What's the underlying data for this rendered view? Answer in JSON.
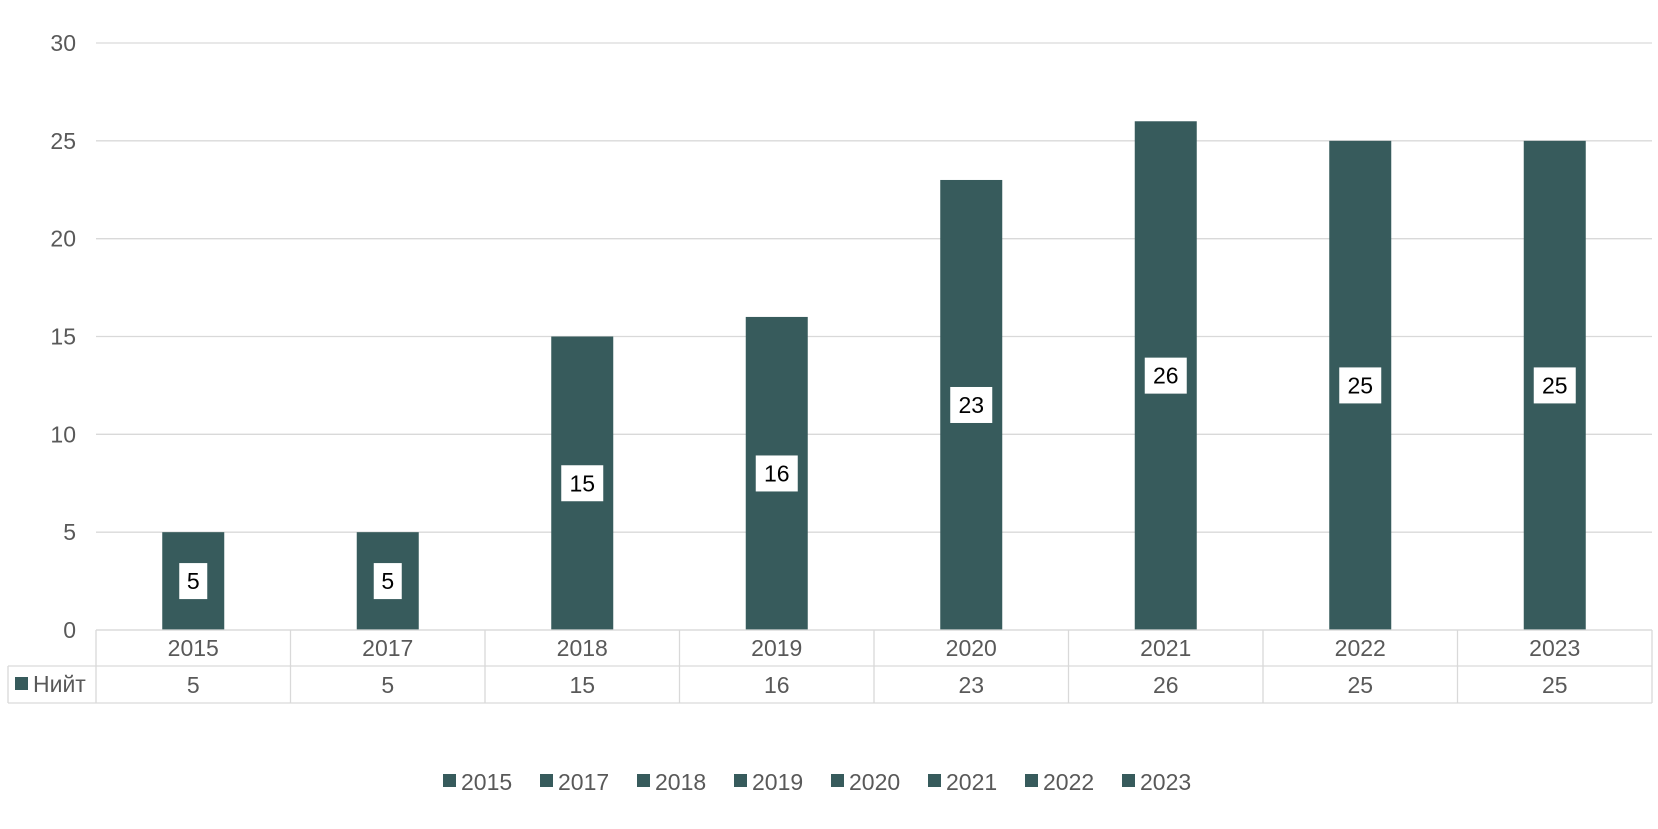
{
  "chart_data": {
    "type": "bar",
    "categories": [
      "2015",
      "2017",
      "2018",
      "2019",
      "2020",
      "2021",
      "2022",
      "2023"
    ],
    "series": [
      {
        "name": "Нийт",
        "values": [
          5,
          5,
          15,
          16,
          23,
          26,
          25,
          25
        ]
      }
    ],
    "ylim": [
      0,
      30
    ],
    "yticks": [
      0,
      5,
      10,
      15,
      20,
      25,
      30
    ],
    "grid": true,
    "data_table": true,
    "data_labels": true,
    "legend": {
      "placement": "bottom",
      "entries": [
        "2015",
        "2017",
        "2018",
        "2019",
        "2020",
        "2021",
        "2022",
        "2023"
      ]
    },
    "colors": {
      "bar": "#375b5c",
      "grid": "#d9d9d9",
      "text": "#595959"
    }
  }
}
